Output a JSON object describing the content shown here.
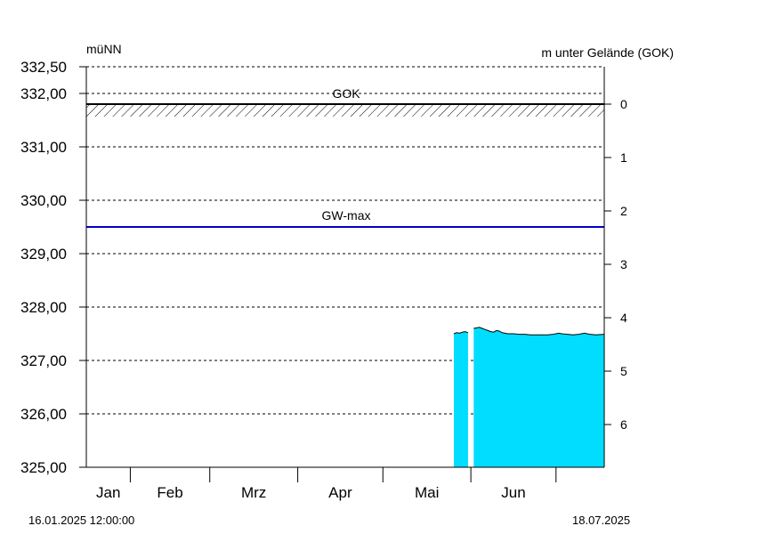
{
  "chart_data": {
    "type": "area",
    "ylabel_left": "müNN",
    "ylabel_right": "m unter Gelände (GOK)",
    "ylim": [
      325.0,
      332.5
    ],
    "yticks_left": [
      "332,50",
      "332,00",
      "331,00",
      "330,00",
      "329,00",
      "328,00",
      "327,00",
      "326,00",
      "325,00"
    ],
    "yticks_left_values": [
      332.5,
      332.0,
      331.0,
      330.0,
      329.0,
      328.0,
      327.0,
      326.0,
      325.0
    ],
    "ground_level": 331.8,
    "yticks_right": [
      "0",
      "1",
      "2",
      "3",
      "4",
      "5",
      "6"
    ],
    "yticks_right_values": [
      0,
      1,
      2,
      3,
      4,
      5,
      6
    ],
    "gridlines_dashed": true,
    "xlim": [
      "2025-01-16T12:00:00",
      "2025-07-18T00:00:00"
    ],
    "months": [
      "Jan",
      "Feb",
      "Mrz",
      "Apr",
      "Mai",
      "Jun"
    ],
    "month_boundaries": [
      "2025-02-01",
      "2025-03-01",
      "2025-04-01",
      "2025-05-01",
      "2025-06-01",
      "2025-07-01"
    ],
    "date_start_label": "16.01.2025 12:00:00",
    "date_end_label": "18.07.2025",
    "reference_lines": [
      {
        "label": "GOK",
        "value": 331.8,
        "color": "#000000",
        "hatched": true
      },
      {
        "label": "GW-max",
        "value": 329.5,
        "color": "#0000c8"
      }
    ],
    "series": [
      {
        "fill_color": "#00ddff",
        "gap_dates": [
          "2025-06-01"
        ],
        "points": [
          [
            "2025-05-26",
            327.5
          ],
          [
            "2025-05-27",
            327.52
          ],
          [
            "2025-05-28",
            327.51
          ],
          [
            "2025-05-29",
            327.53
          ],
          [
            "2025-05-30",
            327.54
          ],
          [
            "2025-05-31",
            327.52
          ],
          [
            "2025-06-02",
            327.6
          ],
          [
            "2025-06-03",
            327.61
          ],
          [
            "2025-06-04",
            327.62
          ],
          [
            "2025-06-05",
            327.6
          ],
          [
            "2025-06-06",
            327.58
          ],
          [
            "2025-06-07",
            327.56
          ],
          [
            "2025-06-08",
            327.54
          ],
          [
            "2025-06-09",
            327.53
          ],
          [
            "2025-06-10",
            327.56
          ],
          [
            "2025-06-11",
            327.55
          ],
          [
            "2025-06-12",
            327.52
          ],
          [
            "2025-06-13",
            327.51
          ],
          [
            "2025-06-14",
            327.5
          ],
          [
            "2025-06-16",
            327.5
          ],
          [
            "2025-06-18",
            327.49
          ],
          [
            "2025-06-20",
            327.49
          ],
          [
            "2025-06-22",
            327.48
          ],
          [
            "2025-06-24",
            327.48
          ],
          [
            "2025-06-26",
            327.48
          ],
          [
            "2025-06-28",
            327.48
          ],
          [
            "2025-06-30",
            327.49
          ],
          [
            "2025-07-02",
            327.51
          ],
          [
            "2025-07-03",
            327.5
          ],
          [
            "2025-07-05",
            327.49
          ],
          [
            "2025-07-07",
            327.48
          ],
          [
            "2025-07-09",
            327.49
          ],
          [
            "2025-07-11",
            327.51
          ],
          [
            "2025-07-13",
            327.49
          ],
          [
            "2025-07-15",
            327.48
          ],
          [
            "2025-07-18",
            327.49
          ]
        ]
      }
    ]
  }
}
